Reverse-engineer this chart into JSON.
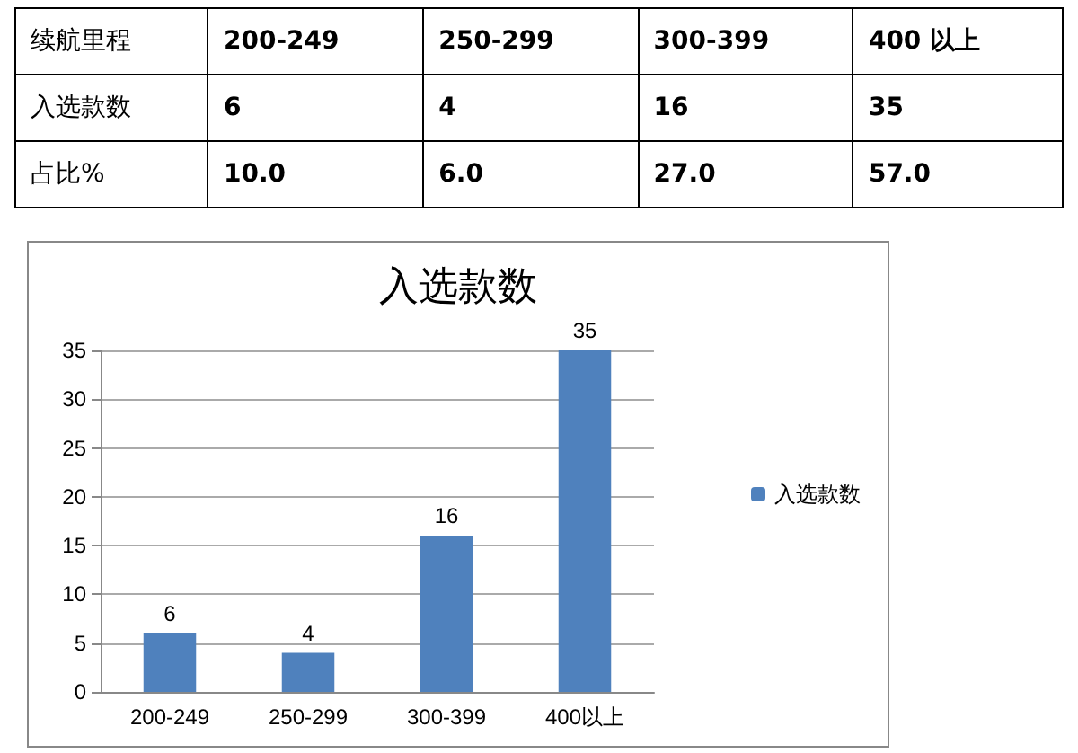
{
  "chart_data": [
    {
      "type": "other",
      "xlabel": "续航里程",
      "categories": [
        "200-249",
        "250-299",
        "300-399",
        "400 以上"
      ],
      "series": [
        {
          "name": "入选款数",
          "values": [
            6,
            4,
            16,
            35
          ],
          "value_labels": [
            "6",
            "4",
            "16",
            "35"
          ]
        },
        {
          "name": "占比%",
          "values": [
            10.0,
            6.0,
            27.0,
            57.0
          ],
          "value_labels": [
            "10.0",
            "6.0",
            "27.0",
            "57.0"
          ]
        }
      ]
    },
    {
      "type": "bar",
      "title": "入选款数",
      "categories": [
        "200-249",
        "250-299",
        "300-399",
        "400以上"
      ],
      "series": [
        {
          "name": "入选款数",
          "color": "#4f81bd",
          "values": [
            6,
            4,
            16,
            35
          ]
        }
      ],
      "data_labels": true,
      "ylim": [
        0,
        35
      ],
      "yticks": [
        0,
        5,
        10,
        15,
        20,
        25,
        30,
        35
      ],
      "grid": "y",
      "legend": "right"
    }
  ]
}
